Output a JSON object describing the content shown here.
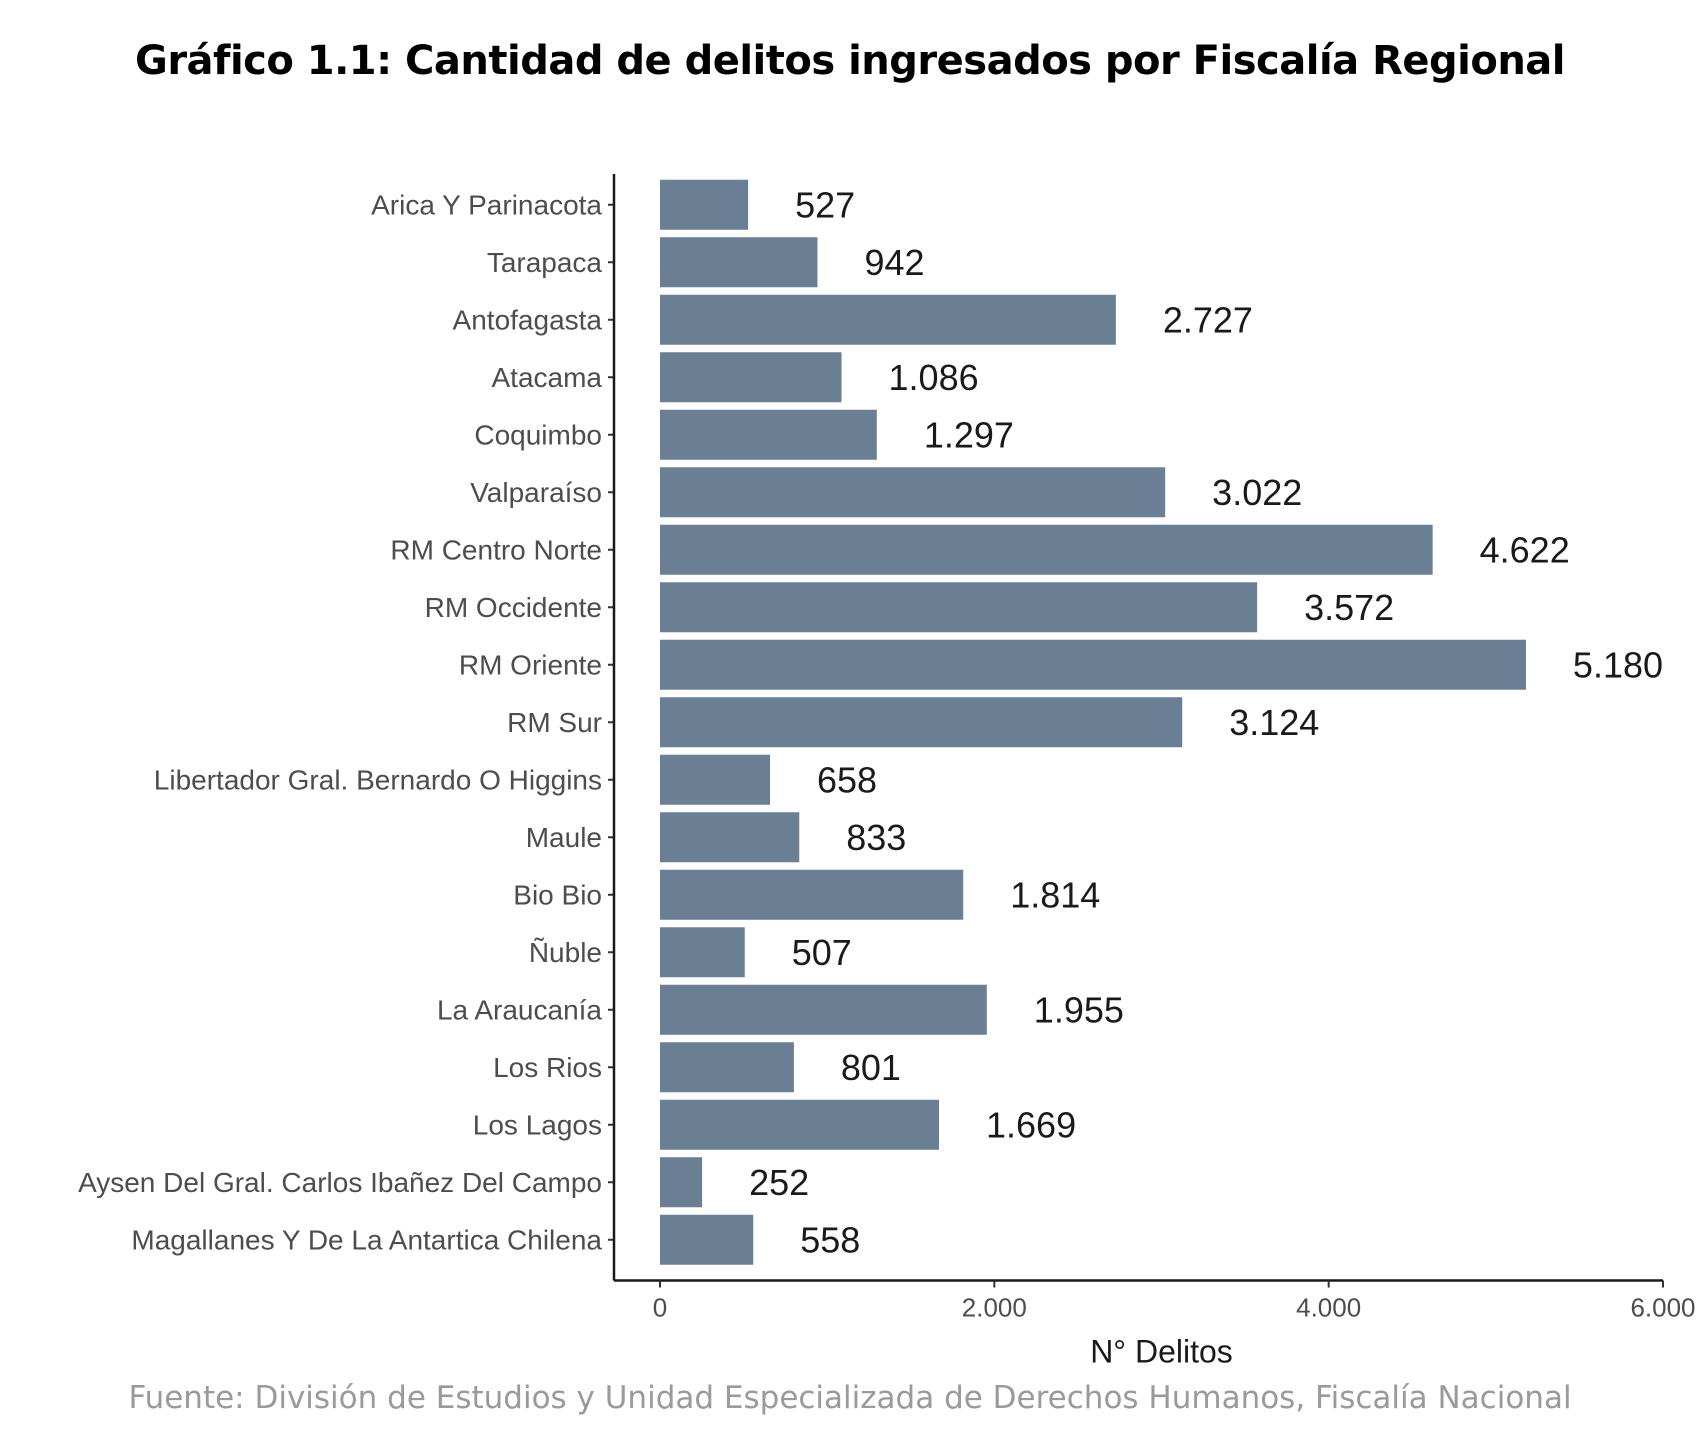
{
  "chart_data": {
    "type": "bar",
    "orientation": "horizontal",
    "title": "Gráfico 1.1: Cantidad de delitos ingresados por Fiscalía Regional",
    "xlabel": "N° Delitos",
    "ylabel": "",
    "xlim": [
      0,
      6000
    ],
    "x_ticks": [
      0,
      2000,
      4000,
      6000
    ],
    "x_tick_labels": [
      "0",
      "2.000",
      "4.000",
      "6.000"
    ],
    "grid": false,
    "bar_color": "#6a7f93",
    "categories": [
      "Arica Y Parinacota",
      "Tarapaca",
      "Antofagasta",
      "Atacama",
      "Coquimbo",
      "Valparaíso",
      "RM Centro Norte",
      "RM Occidente",
      "RM Oriente",
      "RM Sur",
      "Libertador Gral. Bernardo O Higgins",
      "Maule",
      "Bio Bio",
      "Ñuble",
      "La Araucanía",
      "Los Rios",
      "Los Lagos",
      "Aysen Del Gral. Carlos Ibañez Del Campo",
      "Magallanes Y De La Antartica Chilena"
    ],
    "values": [
      527,
      942,
      2727,
      1086,
      1297,
      3022,
      4622,
      3572,
      5180,
      3124,
      658,
      833,
      1814,
      507,
      1955,
      801,
      1669,
      252,
      558
    ],
    "value_labels": [
      "527",
      "942",
      "2.727",
      "1.086",
      "1.297",
      "3.022",
      "4.622",
      "3.572",
      "5.180",
      "3.124",
      "658",
      "833",
      "1.814",
      "507",
      "1.955",
      "801",
      "1.669",
      "252",
      "558"
    ]
  },
  "source": "Fuente: División de Estudios y Unidad Especializada de Derechos Humanos, Fiscalía Nacional"
}
